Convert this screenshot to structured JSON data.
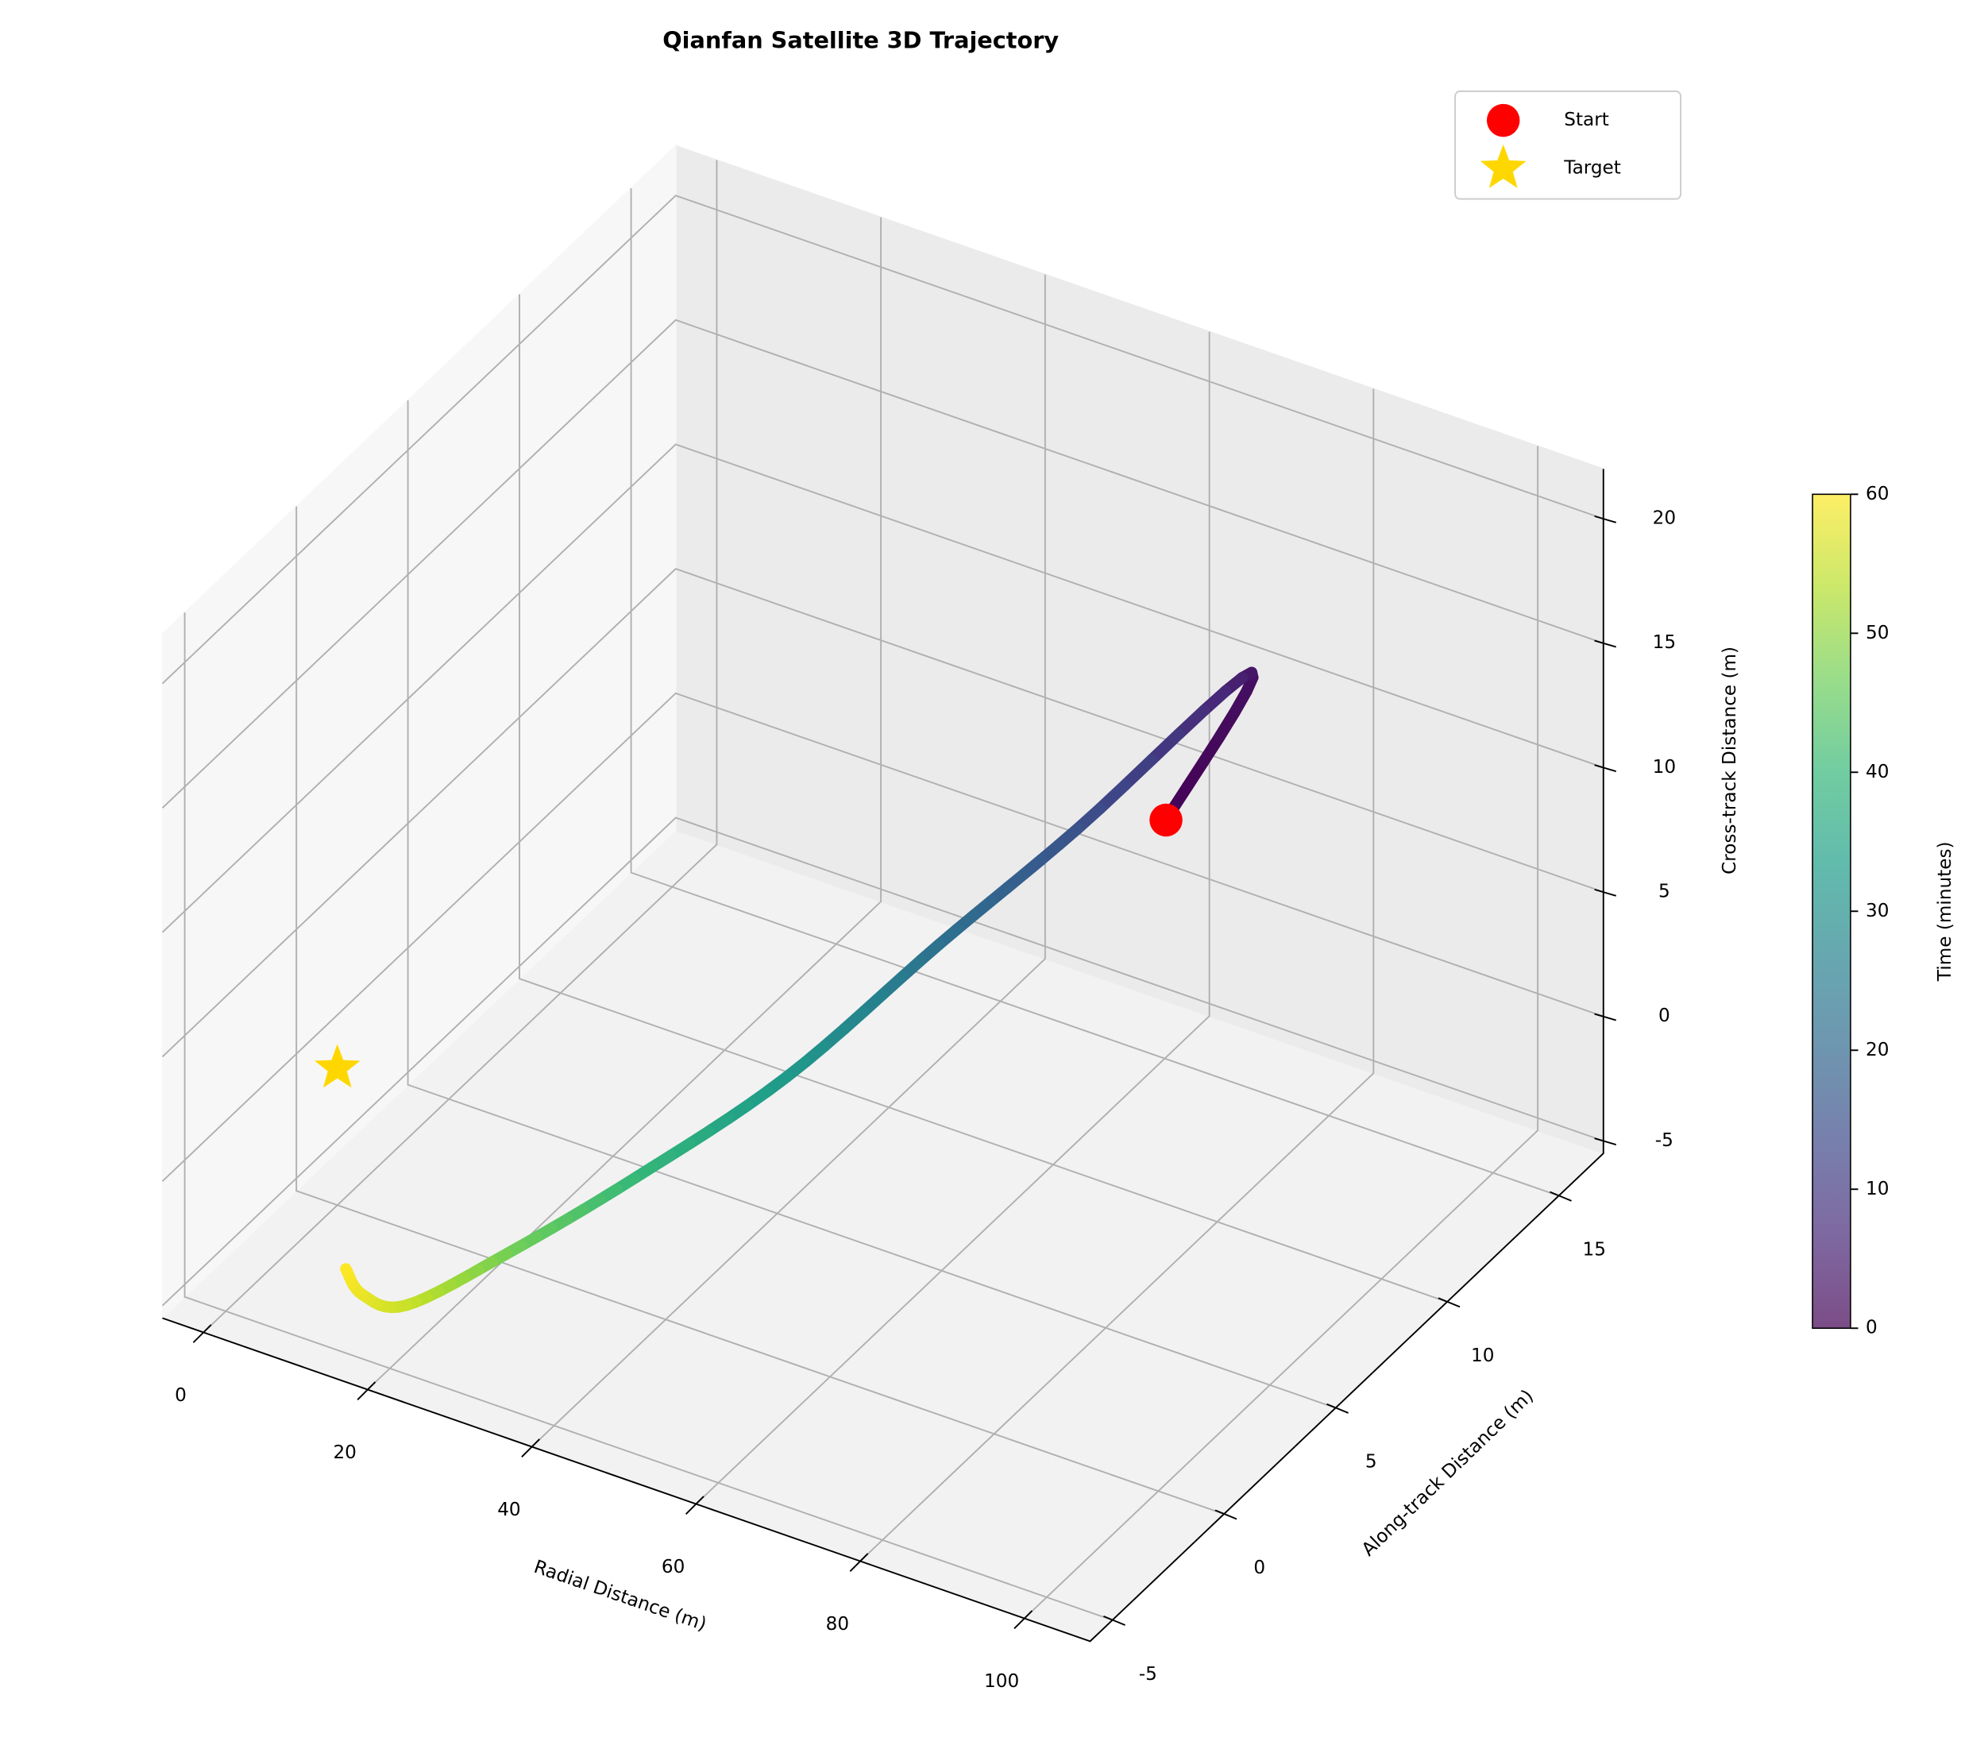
{
  "chart_data": {
    "type": "trajectory3d",
    "title": "Qianfan Satellite 3D Trajectory",
    "x_label": "Radial Distance (m)",
    "y_label": "Along-track Distance (m)",
    "z_label": "Cross-track Distance (m)",
    "xlim": [
      -5,
      108
    ],
    "ylim": [
      -6,
      17
    ],
    "zlim": [
      -5.5,
      22
    ],
    "xticks": [
      0,
      20,
      40,
      60,
      80,
      100
    ],
    "yticks": [
      -5,
      0,
      5,
      10,
      15
    ],
    "zticks": [
      -5,
      0,
      5,
      10,
      15,
      20
    ],
    "grid": true,
    "trajectory": {
      "time": [
        0,
        3,
        15,
        22,
        32,
        40,
        47,
        55,
        58,
        60
      ],
      "x": [
        80,
        85,
        72,
        60,
        46,
        34,
        22,
        16,
        12,
        10
      ],
      "y": [
        7.7,
        9.7,
        6.7,
        4.9,
        3.2,
        0.8,
        -0.5,
        -2.8,
        -3.3,
        -3.3
      ],
      "z": [
        12.6,
        17.4,
        12.2,
        7.7,
        2.2,
        -1.2,
        -4.5,
        -5.3,
        -4.9,
        -4.1
      ]
    },
    "colormap": "viridis",
    "colorbar": {
      "label": "Time (minutes)",
      "clim": [
        0,
        60
      ],
      "ticks": [
        0,
        10,
        20,
        30,
        40,
        50,
        60
      ]
    },
    "markers": [
      {
        "name": "Start",
        "color": "#ff0000",
        "shape": "circle",
        "x": 80,
        "y": 7.7,
        "z": 12.6
      },
      {
        "name": "Target",
        "color": "#ffd700",
        "shape": "star",
        "x": 0,
        "y": 0,
        "z": 0
      }
    ],
    "legend_position": "upper right"
  }
}
